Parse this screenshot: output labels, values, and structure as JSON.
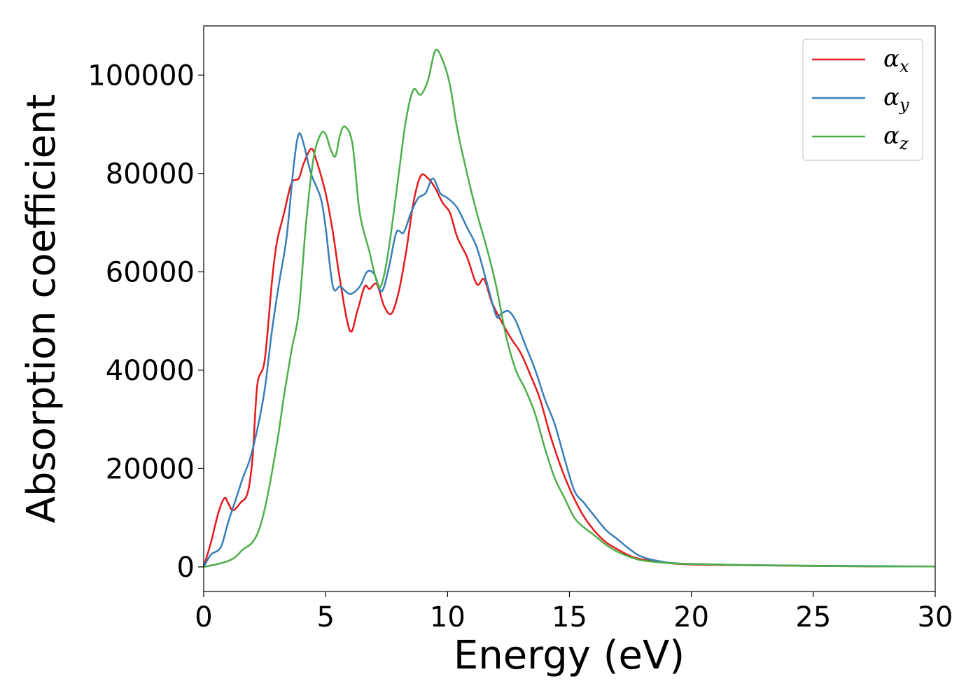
{
  "chart_data": {
    "type": "line",
    "title": "",
    "xlabel": "Energy (eV)",
    "ylabel": "Absorption coefficient",
    "xlim": [
      0,
      30
    ],
    "ylim": [
      -5000,
      110000
    ],
    "xticks": [
      0,
      5,
      10,
      15,
      20,
      25,
      30
    ],
    "xtick_labels": [
      "0",
      "5",
      "10",
      "15",
      "20",
      "25",
      "30"
    ],
    "yticks": [
      0,
      20000,
      40000,
      60000,
      80000,
      100000
    ],
    "ytick_labels": [
      "0",
      "20000",
      "40000",
      "60000",
      "80000",
      "100000"
    ],
    "grid": false,
    "legend_position": "top-right",
    "series": [
      {
        "name": "α_x",
        "symbol": "α",
        "subscript": "x",
        "color": "#e41a1c",
        "x": [
          0,
          0.3,
          0.6,
          0.85,
          1.0,
          1.2,
          1.5,
          1.8,
          2.0,
          2.2,
          2.5,
          2.8,
          3.0,
          3.3,
          3.6,
          3.9,
          4.1,
          4.4,
          4.6,
          5.0,
          5.3,
          5.6,
          6.0,
          6.3,
          6.6,
          6.8,
          7.1,
          7.4,
          7.7,
          8.0,
          8.3,
          8.6,
          8.9,
          9.2,
          9.5,
          9.8,
          10.1,
          10.4,
          10.8,
          11.2,
          11.5,
          11.8,
          12.2,
          12.6,
          13.0,
          13.4,
          13.8,
          14.2,
          14.6,
          15.0,
          15.5,
          16.0,
          16.5,
          17.0,
          17.5,
          18.0,
          19.0,
          20.0,
          22.0,
          25.0,
          28.0,
          30.0
        ],
        "values": [
          0,
          5000,
          11000,
          14000,
          13000,
          11500,
          13000,
          15000,
          22000,
          37000,
          42000,
          58000,
          66000,
          72000,
          78000,
          79000,
          82000,
          85000,
          83000,
          76000,
          68000,
          58000,
          48000,
          52000,
          57000,
          56500,
          57500,
          53000,
          51500,
          56000,
          64000,
          74000,
          79500,
          79000,
          77000,
          74000,
          72000,
          67000,
          63000,
          57500,
          58500,
          54000,
          50000,
          46500,
          43500,
          39000,
          34000,
          27000,
          21000,
          16000,
          11000,
          7500,
          5000,
          3500,
          2200,
          1500,
          800,
          500,
          350,
          200,
          100,
          100
        ]
      },
      {
        "name": "α_y",
        "symbol": "α",
        "subscript": "y",
        "color": "#377eb8",
        "x": [
          0,
          0.3,
          0.7,
          1.0,
          1.3,
          1.6,
          1.9,
          2.2,
          2.5,
          2.8,
          3.1,
          3.4,
          3.7,
          3.9,
          4.1,
          4.4,
          4.8,
          5.0,
          5.3,
          5.6,
          6.0,
          6.4,
          6.7,
          7.0,
          7.3,
          7.6,
          7.9,
          8.2,
          8.5,
          8.8,
          9.1,
          9.4,
          9.7,
          10.0,
          10.4,
          10.8,
          11.2,
          11.6,
          12.0,
          12.2,
          12.5,
          12.8,
          13.2,
          13.6,
          14.0,
          14.4,
          14.8,
          15.2,
          15.6,
          16.0,
          16.5,
          17.0,
          17.5,
          18.0,
          19.0,
          20.0,
          22.0,
          25.0,
          28.0,
          30.0
        ],
        "values": [
          0,
          2500,
          4000,
          9000,
          13500,
          18000,
          22000,
          28000,
          36000,
          48000,
          58000,
          67000,
          82000,
          88000,
          86000,
          80000,
          75000,
          69000,
          57000,
          57000,
          55500,
          57000,
          60000,
          59500,
          56000,
          61000,
          68000,
          68000,
          72000,
          75000,
          76000,
          79000,
          76000,
          75000,
          73000,
          69000,
          65000,
          58000,
          51000,
          51500,
          52000,
          50000,
          45000,
          40000,
          34000,
          29000,
          22000,
          15500,
          13000,
          10500,
          7500,
          5500,
          3500,
          2000,
          900,
          600,
          400,
          250,
          150,
          100
        ]
      },
      {
        "name": "α_z",
        "symbol": "α",
        "subscript": "z",
        "color": "#4daf4a",
        "x": [
          0,
          0.5,
          1.0,
          1.3,
          1.6,
          2.0,
          2.3,
          2.6,
          3.0,
          3.3,
          3.6,
          3.9,
          4.2,
          4.5,
          4.8,
          5.0,
          5.2,
          5.4,
          5.6,
          5.8,
          6.1,
          6.4,
          6.8,
          7.1,
          7.3,
          7.6,
          8.0,
          8.3,
          8.6,
          8.9,
          9.2,
          9.5,
          9.8,
          10.1,
          10.4,
          10.8,
          11.2,
          11.6,
          12.0,
          12.4,
          12.8,
          13.2,
          13.6,
          14.0,
          14.4,
          14.8,
          15.2,
          15.6,
          16.0,
          16.5,
          17.0,
          17.5,
          18.0,
          19.0,
          20.0,
          22.0,
          25.0,
          28.0,
          30.0
        ],
        "values": [
          0,
          500,
          1200,
          2000,
          3500,
          5000,
          8000,
          14000,
          25000,
          35000,
          44000,
          52000,
          70000,
          83000,
          88000,
          88000,
          85000,
          83500,
          88000,
          89500,
          86000,
          72000,
          64000,
          58000,
          57500,
          65000,
          80000,
          91000,
          97000,
          96000,
          99000,
          105000,
          103000,
          98000,
          89000,
          80000,
          72000,
          65000,
          57000,
          47000,
          40000,
          36000,
          31000,
          24000,
          18000,
          14000,
          10000,
          8000,
          6500,
          4500,
          3000,
          2000,
          1300,
          800,
          600,
          400,
          200,
          100,
          100
        ]
      }
    ]
  }
}
